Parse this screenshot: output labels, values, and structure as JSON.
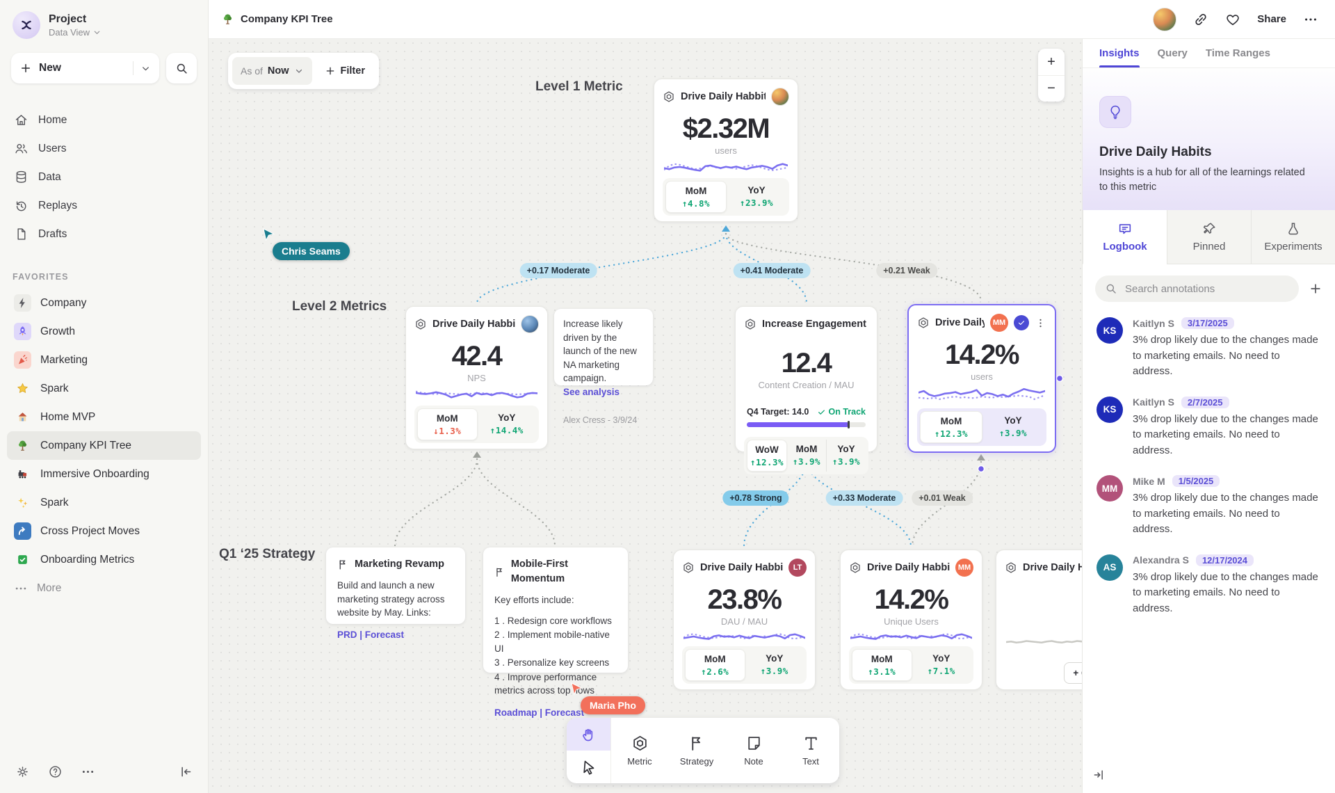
{
  "sidebar": {
    "project_name": "Project",
    "workspace_label": "Data View",
    "new_label": "New",
    "nav": [
      {
        "icon": "home",
        "label": "Home"
      },
      {
        "icon": "users",
        "label": "Users"
      },
      {
        "icon": "database",
        "label": "Data"
      },
      {
        "icon": "replay",
        "label": "Replays"
      },
      {
        "icon": "file",
        "label": "Drafts"
      }
    ],
    "favorites_header": "FAVORITES",
    "favorites": [
      {
        "icon": "bolt",
        "label": "Company",
        "tile": "#ECECE8"
      },
      {
        "icon": "rocket",
        "label": "Growth",
        "tile": "#DFD8FA"
      },
      {
        "icon": "confetti",
        "label": "Marketing",
        "tile": "#FAD6CE"
      },
      {
        "icon": "star",
        "label": "Spark",
        "tile": ""
      },
      {
        "icon": "house",
        "label": "Home MVP",
        "tile": ""
      },
      {
        "icon": "tree",
        "label": "Company KPI Tree",
        "tile": "",
        "active": true
      },
      {
        "icon": "train",
        "label": "Immersive Onboarding",
        "tile": ""
      },
      {
        "icon": "sparkles",
        "label": "Spark",
        "tile": ""
      },
      {
        "icon": "arrow-curve",
        "label": "Cross Project Moves",
        "tile": "#3E7BC0"
      },
      {
        "icon": "check-square",
        "label": "Onboarding Metrics",
        "tile": ""
      }
    ],
    "more_label": "More"
  },
  "topbar": {
    "doc_title": "Company KPI Tree",
    "share_label": "Share"
  },
  "canvas": {
    "asof_label": "As of",
    "asof_value": "Now",
    "filter_label": "Filter",
    "zoom_in": "+",
    "zoom_out": "−",
    "level1_label": "Level 1 Metric",
    "level2_label": "Level 2 Metrics",
    "strategy_label": "Q1 ‘25 Strategy",
    "edge_labels": [
      {
        "text": "+0.17 Moderate",
        "strength": "moderate"
      },
      {
        "text": "+0.41 Moderate",
        "strength": "moderate"
      },
      {
        "text": "+0.21 Weak",
        "strength": "weak"
      },
      {
        "text": "+0.78 Strong",
        "strength": "strong"
      },
      {
        "text": "+0.33 Moderate",
        "strength": "moderate"
      },
      {
        "text": "+0.01 Weak",
        "strength": "weak"
      }
    ],
    "cursors": [
      {
        "name": "Chris Seams",
        "color": "#1A7D8E"
      },
      {
        "name": "Maria Pho",
        "color": "#F2705B"
      }
    ],
    "cards": {
      "l1": {
        "title": "Drive Daily Habbits",
        "value": "$2.32M",
        "unit": "users",
        "stats": [
          {
            "label": "MoM",
            "value": "4.8%",
            "dir": "up"
          },
          {
            "label": "YoY",
            "value": "23.9%",
            "dir": "up"
          }
        ],
        "spark": {
          "solid": [
            36,
            42,
            33,
            30,
            34,
            40,
            46,
            50,
            26,
            22,
            30,
            36,
            29,
            34,
            28,
            36,
            42,
            33,
            29,
            24,
            30,
            40,
            22,
            14,
            22
          ],
          "dotted": [
            46,
            24,
            14,
            18,
            26,
            34,
            42,
            38,
            30,
            24,
            32,
            38,
            28,
            34,
            40,
            33,
            26,
            20,
            26,
            34,
            44,
            48,
            44,
            38,
            34
          ]
        }
      },
      "nps": {
        "title": "Drive Daily Habbits",
        "value": "42.4",
        "unit": "NPS",
        "stats": [
          {
            "label": "MoM",
            "value": "1.3%",
            "dir": "down"
          },
          {
            "label": "YoY",
            "value": "14.4%",
            "dir": "up"
          }
        ],
        "spark": {
          "solid": [
            22,
            26,
            28,
            24,
            18,
            24,
            32,
            46,
            38,
            30,
            26,
            40,
            22,
            30,
            26,
            34,
            24,
            22,
            28,
            38,
            46,
            42,
            26,
            22,
            24
          ],
          "dotted": [
            14,
            20,
            24,
            27,
            28,
            26,
            24,
            26,
            28,
            30,
            28,
            26,
            24,
            23,
            26,
            28,
            26,
            24,
            26,
            28,
            30,
            28,
            26,
            24,
            23
          ]
        }
      },
      "engagement": {
        "title": "Increase Engagement",
        "value": "12.4",
        "unit": "Content Creation / MAU",
        "target_label": "Q4 Target: 14.0",
        "status_label": "On Track",
        "progress_pct": 86,
        "stats": [
          {
            "label": "WoW",
            "value": "12.3%",
            "dir": "up"
          },
          {
            "label": "MoM",
            "value": "3.9%",
            "dir": "up"
          },
          {
            "label": "YoY",
            "value": "3.9%",
            "dir": "up"
          }
        ]
      },
      "selected": {
        "title": "Drive Daily Habb..",
        "badge": "MM",
        "badge_color": "#F2714F",
        "value": "14.2%",
        "unit": "users",
        "stats": [
          {
            "label": "MoM",
            "value": "12.3%",
            "dir": "up"
          },
          {
            "label": "YoY",
            "value": "3.9%",
            "dir": "up"
          }
        ],
        "spark": {
          "solid": [
            20,
            14,
            28,
            34,
            30,
            24,
            22,
            18,
            26,
            22,
            18,
            10,
            32,
            22,
            26,
            34,
            28,
            36,
            24,
            16,
            6,
            12,
            16,
            20,
            14
          ],
          "dotted": [
            40,
            42,
            44,
            40,
            46,
            42,
            38,
            36,
            40,
            38,
            42,
            40,
            36,
            38,
            40,
            36,
            38,
            36,
            34,
            32,
            34,
            36,
            46,
            38,
            30
          ]
        }
      },
      "dau": {
        "title": "Drive Daily Habbits",
        "badge": "LT",
        "badge_color": "#B2485E",
        "value": "23.8%",
        "unit": "DAU / MAU",
        "stats": [
          {
            "label": "MoM",
            "value": "2.6%",
            "dir": "up"
          },
          {
            "label": "YoY",
            "value": "3.9%",
            "dir": "up"
          }
        ],
        "spark": {
          "solid": [
            42,
            36,
            30,
            38,
            44,
            48,
            28,
            22,
            32,
            28,
            36,
            24,
            34,
            42,
            26,
            32,
            38,
            30,
            22,
            28,
            44,
            20,
            14,
            26,
            40
          ],
          "dotted": [
            38,
            18,
            12,
            22,
            32,
            38,
            42,
            34,
            26,
            34,
            24,
            36,
            44,
            30,
            22,
            36,
            28,
            34,
            18,
            12,
            22,
            42,
            46,
            38,
            40
          ]
        }
      },
      "unique": {
        "title": "Drive Daily Habbits",
        "badge": "MM",
        "badge_color": "#F2714F",
        "value": "14.2%",
        "unit": "Unique Users",
        "stats": [
          {
            "label": "MoM",
            "value": "3.1%",
            "dir": "up"
          },
          {
            "label": "YoY",
            "value": "7.1%",
            "dir": "up"
          }
        ],
        "spark": {
          "solid": [
            42,
            36,
            30,
            38,
            44,
            48,
            28,
            22,
            32,
            28,
            36,
            24,
            34,
            42,
            26,
            32,
            38,
            30,
            22,
            28,
            44,
            20,
            14,
            26,
            40
          ],
          "dotted": [
            38,
            18,
            12,
            22,
            32,
            38,
            42,
            34,
            26,
            34,
            24,
            36,
            44,
            30,
            22,
            36,
            28,
            34,
            18,
            12,
            22,
            42,
            46,
            38,
            40
          ]
        }
      },
      "partial": {
        "title": "Drive Daily Habbits",
        "connect_label": "+ Connect",
        "spark": {
          "solid": [
            32,
            31,
            33,
            32,
            30,
            31,
            32,
            33,
            31,
            30,
            32,
            33,
            31,
            32,
            30,
            31,
            33,
            32,
            31,
            30,
            32,
            31,
            33,
            32,
            31
          ],
          "dotted": []
        }
      }
    },
    "notes": {
      "analysis": {
        "text": "Increase likely driven by the launch of the new NA marketing campaign.",
        "link": "See analysis",
        "footer": "Alex Cress - 3/9/24"
      },
      "marketing": {
        "title": "Marketing Revamp",
        "body": "Build and launch a new marketing strategy across website by May. Links:",
        "links": "PRD | Forecast"
      },
      "mobile": {
        "title": "Mobile-First Momentum",
        "body": "Key efforts include:",
        "items": [
          {
            "text": "Redesign core workflows"
          },
          {
            "text": "Implement mobile-native UI"
          },
          {
            "text": "Personalize key screens"
          },
          {
            "text": "Improve performance metrics across top flows"
          }
        ],
        "links": "Roadmap | Forecast"
      }
    },
    "tools": [
      {
        "icon": "hexagon",
        "label": "Metric"
      },
      {
        "icon": "flag",
        "label": "Strategy"
      },
      {
        "icon": "note",
        "label": "Note"
      },
      {
        "icon": "text",
        "label": "Text"
      }
    ]
  },
  "insights": {
    "tabs": [
      {
        "label": "Insights",
        "active": true
      },
      {
        "label": "Query"
      },
      {
        "label": "Time Ranges"
      }
    ],
    "hero": {
      "title": "Drive Daily Habits",
      "description": "Insights is a hub for all of the learnings related to this metric"
    },
    "sections": [
      {
        "icon": "logbook",
        "label": "Logbook",
        "active": true
      },
      {
        "icon": "pin",
        "label": "Pinned"
      },
      {
        "icon": "flask",
        "label": "Experiments"
      }
    ],
    "search_placeholder": "Search annotations",
    "annotations": [
      {
        "initials": "KS",
        "color": "#1E2BB8",
        "author": "Kaitlyn S",
        "date": "3/17/2025",
        "text": "3% drop likely due to the changes made to marketing emails. No need to address."
      },
      {
        "initials": "KS",
        "color": "#1E2BB8",
        "author": "Kaitlyn S",
        "date": "2/7/2025",
        "text": "3% drop likely due to the changes made to marketing emails. No need to address."
      },
      {
        "initials": "MM",
        "color": "#B2527A",
        "author": "Mike M",
        "date": "1/5/2025",
        "text": "3% drop likely due to the changes made to marketing emails. No need to address."
      },
      {
        "initials": "AS",
        "color": "#27839A",
        "author": "Alexandra S",
        "date": "12/17/2024",
        "text": "3% drop likely due to the changes made to marketing emails. No need to address."
      }
    ]
  },
  "colors": {
    "accent": "#6C5CE7",
    "positive": "#0FA573",
    "negative": "#E85E4A",
    "edge_blue": "#4FA8D9",
    "edge_gray": "#A6A9A4",
    "spark_line": "#7B6FF0"
  }
}
